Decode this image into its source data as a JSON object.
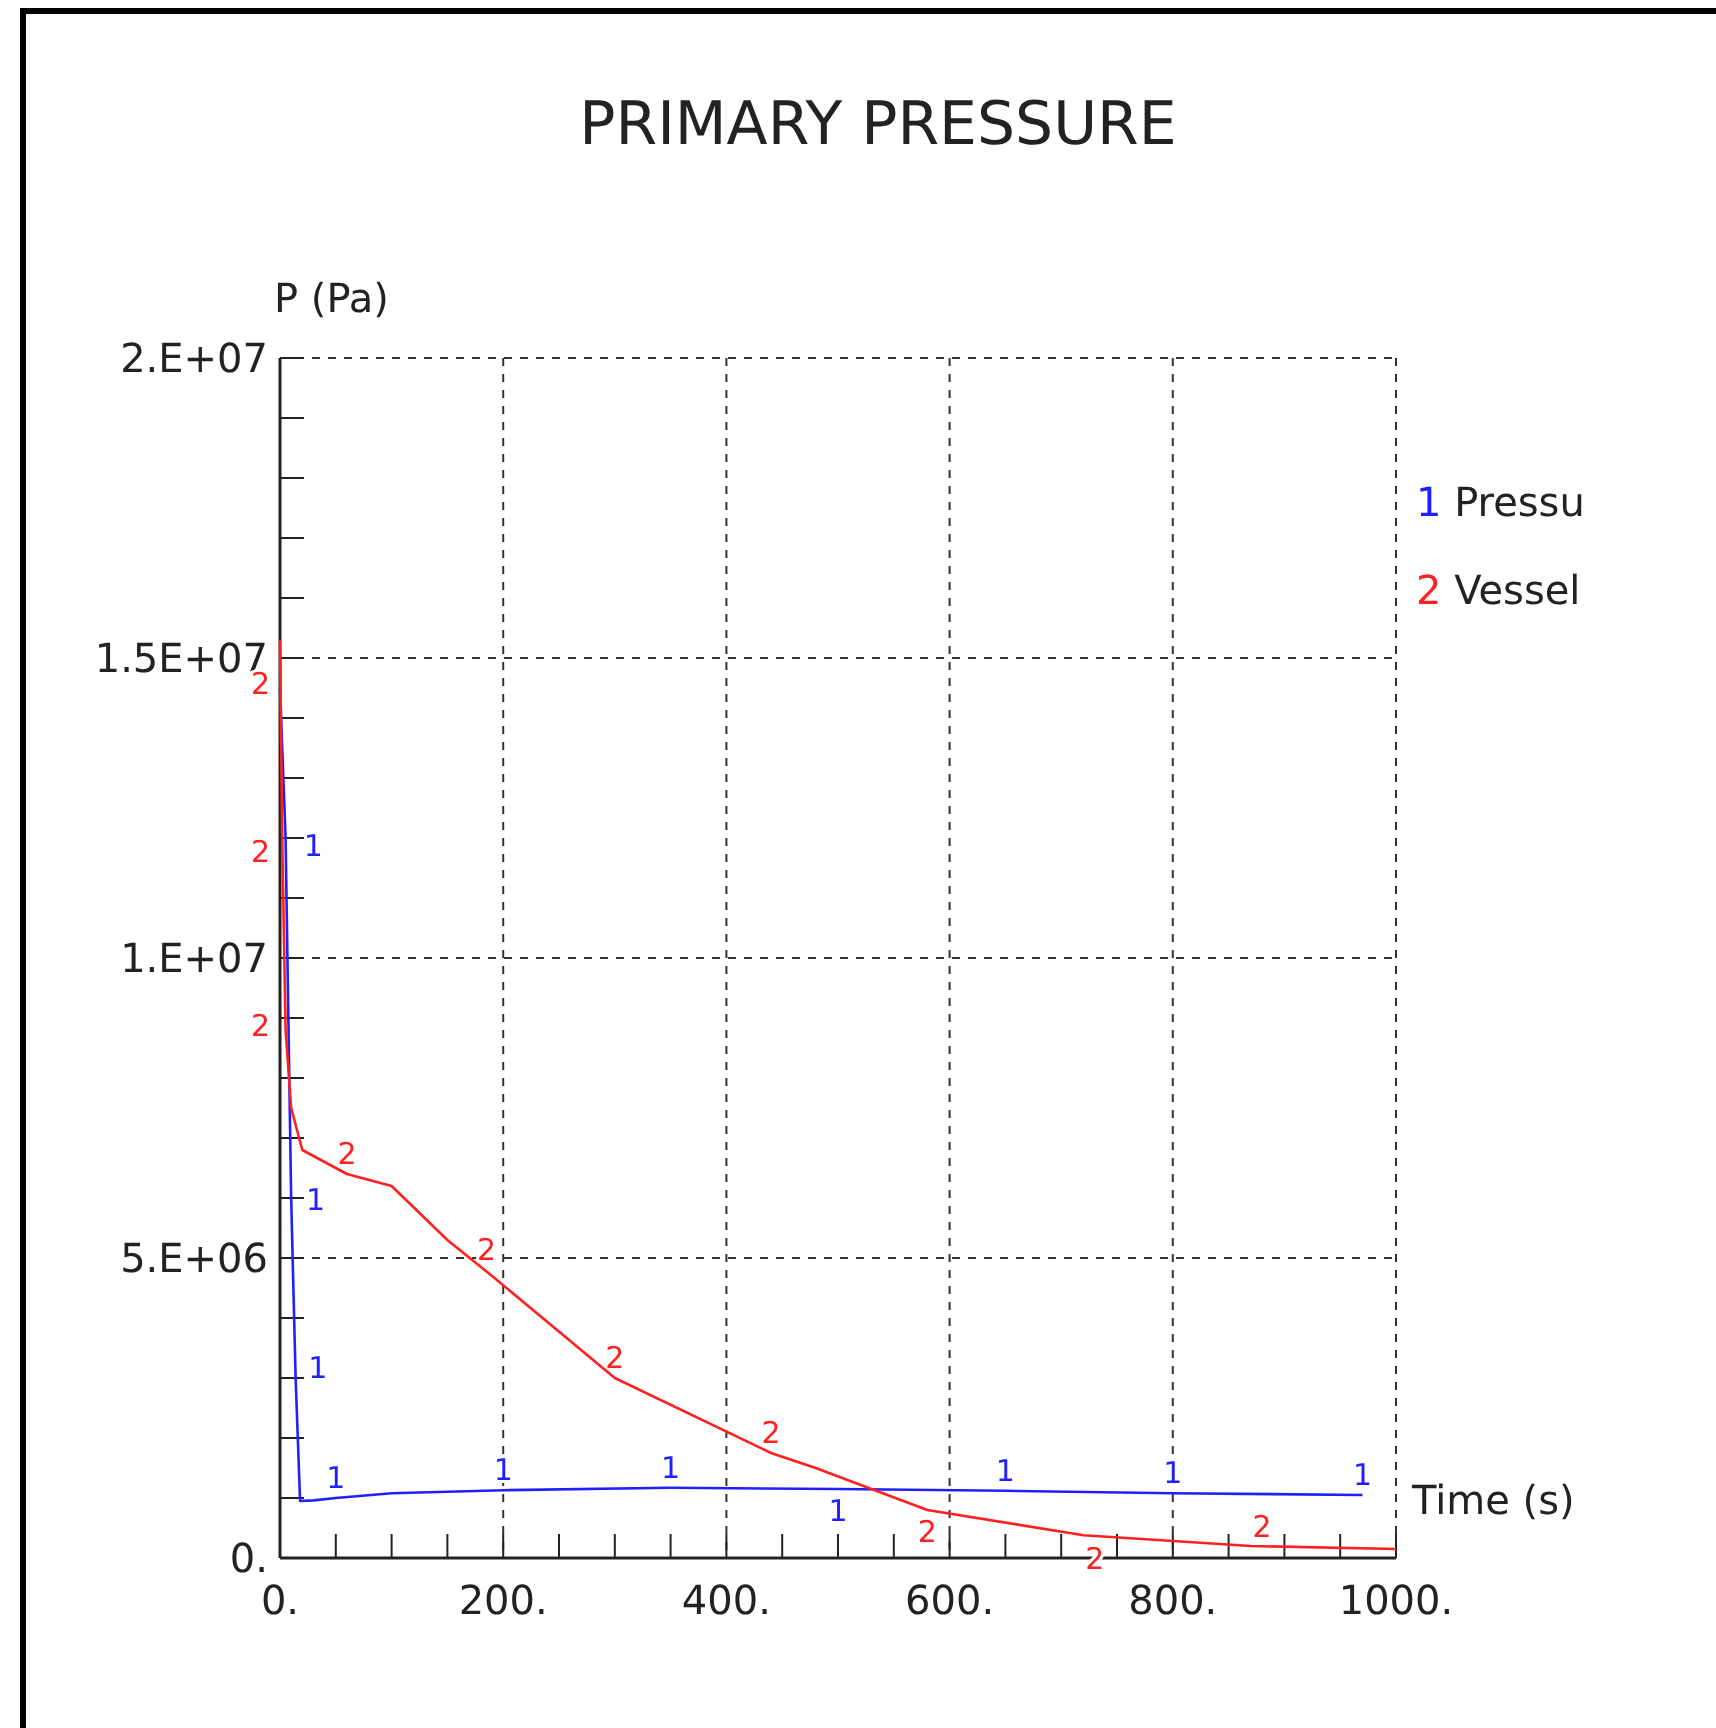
{
  "chart_data": {
    "type": "line",
    "title": "PRIMARY PRESSURE",
    "xlabel": "Time (s)",
    "ylabel": "P (Pa)",
    "xlim": [
      0,
      1000
    ],
    "ylim": [
      0,
      20000000
    ],
    "xticks": [
      {
        "value": 0,
        "label": "0."
      },
      {
        "value": 50,
        "label": null
      },
      {
        "value": 100,
        "label": null
      },
      {
        "value": 150,
        "label": null
      },
      {
        "value": 200,
        "label": "200."
      },
      {
        "value": 250,
        "label": null
      },
      {
        "value": 300,
        "label": null
      },
      {
        "value": 350,
        "label": null
      },
      {
        "value": 400,
        "label": "400."
      },
      {
        "value": 450,
        "label": null
      },
      {
        "value": 500,
        "label": null
      },
      {
        "value": 550,
        "label": null
      },
      {
        "value": 600,
        "label": "600."
      },
      {
        "value": 650,
        "label": null
      },
      {
        "value": 700,
        "label": null
      },
      {
        "value": 750,
        "label": null
      },
      {
        "value": 800,
        "label": "800."
      },
      {
        "value": 850,
        "label": null
      },
      {
        "value": 900,
        "label": null
      },
      {
        "value": 950,
        "label": null
      },
      {
        "value": 1000,
        "label": "1000."
      }
    ],
    "yticks": [
      {
        "value": 0,
        "label": "0."
      },
      {
        "value": 1000000,
        "label": null
      },
      {
        "value": 2000000,
        "label": null
      },
      {
        "value": 3000000,
        "label": null
      },
      {
        "value": 4000000,
        "label": null
      },
      {
        "value": 5000000,
        "label": "5.E+06"
      },
      {
        "value": 6000000,
        "label": null
      },
      {
        "value": 7000000,
        "label": null
      },
      {
        "value": 8000000,
        "label": null
      },
      {
        "value": 9000000,
        "label": null
      },
      {
        "value": 10000000,
        "label": "1.E+07"
      },
      {
        "value": 11000000,
        "label": null
      },
      {
        "value": 12000000,
        "label": null
      },
      {
        "value": 13000000,
        "label": null
      },
      {
        "value": 14000000,
        "label": null
      },
      {
        "value": 15000000,
        "label": "1.5E+07"
      },
      {
        "value": 16000000,
        "label": null
      },
      {
        "value": 17000000,
        "label": null
      },
      {
        "value": 18000000,
        "label": null
      },
      {
        "value": 19000000,
        "label": null
      },
      {
        "value": 20000000,
        "label": "2.E+07"
      }
    ],
    "annotations": [
      {
        "text": "1",
        "x": 7,
        "y": 11900000
      },
      {
        "text": "1",
        "x": 9,
        "y": 6000000
      },
      {
        "text": "1",
        "x": 11,
        "y": 3200000
      },
      {
        "text": "1",
        "x": 50,
        "y": 1000000
      },
      {
        "text": "1",
        "x": 200,
        "y": 1130000
      },
      {
        "text": "1",
        "x": 350,
        "y": 1170000
      },
      {
        "text": "1",
        "x": 500,
        "y": 1150000
      },
      {
        "text": "1",
        "x": 650,
        "y": 1120000
      },
      {
        "text": "1",
        "x": 800,
        "y": 1080000
      },
      {
        "text": "1",
        "x": 970,
        "y": 1050000
      },
      {
        "text": "2",
        "x": 0,
        "y": 14600000
      },
      {
        "text": "2",
        "x": 0,
        "y": 11800000
      },
      {
        "text": "2",
        "x": 3,
        "y": 8900000
      },
      {
        "text": "2",
        "x": 60,
        "y": 6400000
      },
      {
        "text": "2",
        "x": 185,
        "y": 4800000
      },
      {
        "text": "2",
        "x": 300,
        "y": 3000000
      },
      {
        "text": "2",
        "x": 440,
        "y": 1750000
      },
      {
        "text": "2",
        "x": 580,
        "y": 800000
      },
      {
        "text": "2",
        "x": 730,
        "y": 350000
      },
      {
        "text": "2",
        "x": 880,
        "y": 180000
      }
    ],
    "grid": true,
    "legend": "right",
    "marker": "none",
    "line_style": "solid",
    "series": [
      {
        "name": "1 Pressu",
        "color": "#2020ff",
        "x": [
          0,
          5,
          10,
          14,
          18,
          30,
          50,
          100,
          200,
          350,
          500,
          650,
          800,
          970
        ],
        "values": [
          14500000,
          12000000,
          6000000,
          3000000,
          950000,
          960000,
          1000000,
          1080000,
          1130000,
          1170000,
          1150000,
          1120000,
          1080000,
          1050000
        ]
      },
      {
        "name": "2 Vessel",
        "color": "#ff2020",
        "x": [
          0,
          2,
          5,
          10,
          20,
          60,
          100,
          150,
          190,
          300,
          440,
          480,
          580,
          720,
          870,
          1000
        ],
        "values": [
          15300000,
          12000000,
          8800000,
          7500000,
          6800000,
          6400000,
          6200000,
          5300000,
          4700000,
          3000000,
          1750000,
          1500000,
          800000,
          380000,
          200000,
          150000
        ]
      }
    ]
  }
}
